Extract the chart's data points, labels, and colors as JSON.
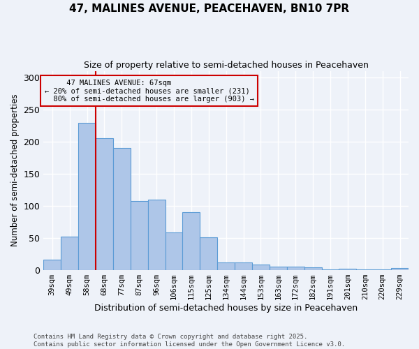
{
  "title": "47, MALINES AVENUE, PEACEHAVEN, BN10 7PR",
  "subtitle": "Size of property relative to semi-detached houses in Peacehaven",
  "xlabel": "Distribution of semi-detached houses by size in Peacehaven",
  "ylabel": "Number of semi-detached properties",
  "categories": [
    "39sqm",
    "49sqm",
    "58sqm",
    "68sqm",
    "77sqm",
    "87sqm",
    "96sqm",
    "106sqm",
    "115sqm",
    "125sqm",
    "134sqm",
    "144sqm",
    "153sqm",
    "163sqm",
    "172sqm",
    "182sqm",
    "191sqm",
    "201sqm",
    "210sqm",
    "220sqm",
    "229sqm"
  ],
  "values": [
    16,
    52,
    229,
    205,
    190,
    107,
    109,
    58,
    90,
    51,
    12,
    12,
    8,
    5,
    5,
    4,
    1,
    2,
    1,
    1,
    3
  ],
  "bar_color": "#aec6e8",
  "bar_edge_color": "#5b9bd5",
  "property_line_x": 2.5,
  "property_label": "47 MALINES AVENUE: 67sqm",
  "smaller_pct": "20%",
  "smaller_n": 231,
  "larger_pct": "80%",
  "larger_n": 903,
  "annotation_box_color": "#cc0000",
  "ylim": [
    0,
    310
  ],
  "yticks": [
    0,
    50,
    100,
    150,
    200,
    250,
    300
  ],
  "footer_line1": "Contains HM Land Registry data © Crown copyright and database right 2025.",
  "footer_line2": "Contains public sector information licensed under the Open Government Licence v3.0.",
  "bg_color": "#eef2f9",
  "grid_color": "#ffffff"
}
